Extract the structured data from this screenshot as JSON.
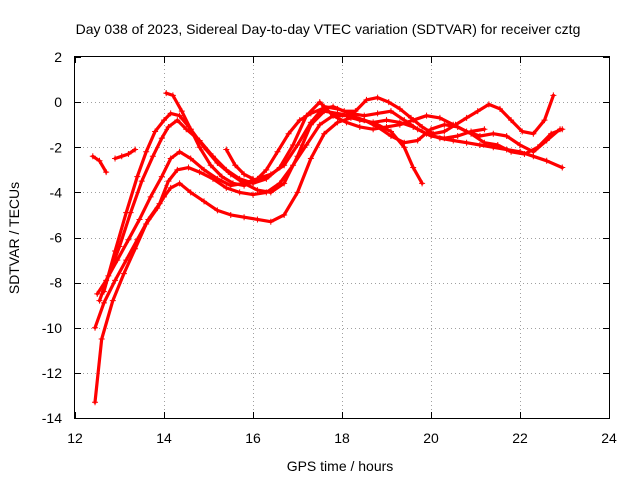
{
  "chart_data": {
    "type": "scatter",
    "title": "Day 038 of 2023, Sidereal Day-to-day VTEC variation (SDTVAR) for receiver cztg",
    "xlabel": "GPS time / hours",
    "ylabel": "SDTVAR / TECUs",
    "xlim": [
      12,
      24
    ],
    "ylim": [
      -14,
      2
    ],
    "xticks": [
      12,
      14,
      16,
      18,
      20,
      22,
      24
    ],
    "yticks": [
      2,
      0,
      -2,
      -4,
      -6,
      -8,
      -10,
      -12,
      -14
    ],
    "grid": true,
    "marker": "+",
    "color": "#ff0000",
    "series": [
      {
        "name": "trace-1",
        "x": [
          12.45,
          12.6,
          12.85,
          13.1,
          13.35,
          13.6,
          13.85,
          14.0,
          14.15,
          14.35,
          14.6,
          14.9,
          15.2,
          15.5,
          15.8,
          16.1,
          16.4,
          16.7,
          17.0,
          17.3,
          17.6,
          17.9,
          18.2,
          18.5,
          18.8,
          19.1,
          19.4,
          19.6,
          19.8
        ],
        "y": [
          -13.3,
          -10.5,
          -8.8,
          -7.6,
          -6.5,
          -5.4,
          -4.7,
          -4.2,
          -3.8,
          -3.6,
          -4.0,
          -4.4,
          -4.8,
          -5.0,
          -5.1,
          -5.2,
          -5.3,
          -5.0,
          -4.0,
          -2.5,
          -1.4,
          -0.9,
          -0.7,
          -0.8,
          -1.0,
          -1.3,
          -2.0,
          -2.9,
          -3.6
        ]
      },
      {
        "name": "trace-2",
        "x": [
          12.45,
          12.65,
          12.9,
          13.15,
          13.4,
          13.65,
          13.9,
          14.1,
          14.3,
          14.55,
          14.8,
          15.1,
          15.4,
          15.7,
          16.0,
          16.3,
          16.6,
          16.9,
          17.2,
          17.5,
          17.8,
          18.1,
          18.4,
          18.7,
          19.0,
          19.3,
          19.6,
          19.9,
          20.2,
          20.5,
          20.8,
          21.1,
          21.4,
          21.7,
          22.0,
          22.3,
          22.6,
          22.95
        ],
        "y": [
          -10.0,
          -8.9,
          -7.9,
          -7.0,
          -6.1,
          -5.2,
          -4.5,
          -3.5,
          -3.0,
          -2.9,
          -3.1,
          -3.4,
          -3.8,
          -4.0,
          -4.1,
          -4.0,
          -3.6,
          -2.8,
          -1.9,
          -1.0,
          -0.6,
          -0.6,
          -0.8,
          -0.9,
          -0.8,
          -0.9,
          -1.1,
          -1.4,
          -1.6,
          -1.7,
          -1.8,
          -1.9,
          -2.0,
          -2.1,
          -2.2,
          -2.4,
          -2.6,
          -2.9
        ]
      },
      {
        "name": "trace-3",
        "x": [
          12.5,
          12.7,
          12.95,
          13.2,
          13.45,
          13.7,
          13.95,
          14.15,
          14.35,
          14.6,
          14.9,
          15.2,
          15.5,
          15.8,
          16.1,
          16.4,
          16.7,
          17.0,
          17.3,
          17.6,
          17.9,
          18.2,
          18.5,
          18.8,
          19.1,
          19.4,
          19.7,
          20.0,
          20.3,
          20.6,
          20.9,
          21.2
        ],
        "y": [
          -8.5,
          -7.9,
          -7.0,
          -6.1,
          -5.2,
          -4.2,
          -3.3,
          -2.5,
          -2.2,
          -2.5,
          -3.0,
          -3.4,
          -3.7,
          -3.6,
          -3.4,
          -3.2,
          -2.8,
          -1.9,
          -0.9,
          -0.2,
          -0.3,
          -0.5,
          -0.6,
          -0.5,
          -0.4,
          -0.8,
          -1.2,
          -1.5,
          -1.6,
          -1.5,
          -1.3,
          -1.2
        ]
      },
      {
        "name": "trace-4",
        "x": [
          12.55,
          12.75,
          13.0,
          13.25,
          13.5,
          13.75,
          13.95,
          14.1,
          14.3,
          14.5,
          14.8,
          15.1,
          15.4,
          15.7,
          16.0,
          16.3,
          16.6,
          16.9,
          17.2,
          17.5,
          17.8,
          18.1,
          18.4,
          18.7,
          19.0,
          19.3,
          19.6,
          19.9,
          20.2,
          20.5,
          20.8,
          21.1,
          21.4,
          21.7,
          22.0,
          22.3,
          22.6,
          22.9
        ],
        "y": [
          -8.8,
          -7.7,
          -6.4,
          -4.9,
          -3.5,
          -2.4,
          -1.6,
          -1.1,
          -0.8,
          -1.2,
          -1.7,
          -2.4,
          -3.0,
          -3.4,
          -3.6,
          -3.4,
          -2.9,
          -1.9,
          -0.6,
          0.0,
          -0.6,
          -0.9,
          -1.1,
          -1.2,
          -1.1,
          -1.0,
          -0.8,
          -0.6,
          -0.7,
          -1.0,
          -1.3,
          -1.5,
          -1.4,
          -1.5,
          -1.9,
          -2.2,
          -1.7,
          -1.2
        ]
      },
      {
        "name": "trace-5",
        "x": [
          12.65,
          12.9,
          13.15,
          13.4,
          13.6,
          13.8,
          14.0,
          14.15,
          14.35,
          14.6,
          14.9,
          15.2,
          15.5,
          15.8,
          16.1,
          16.4,
          16.7,
          17.0,
          17.3,
          17.6,
          17.9,
          18.2,
          18.5,
          18.8,
          19.1,
          19.4,
          19.7,
          20.0,
          20.3,
          20.6,
          20.9,
          21.2,
          21.5,
          21.8,
          22.1,
          22.4,
          22.7,
          22.95
        ],
        "y": [
          -8.4,
          -6.6,
          -4.9,
          -3.3,
          -2.2,
          -1.3,
          -0.8,
          -0.5,
          -0.6,
          -1.2,
          -2.0,
          -2.7,
          -3.2,
          -3.6,
          -3.9,
          -4.0,
          -3.6,
          -2.4,
          -1.0,
          -0.4,
          -0.5,
          -0.6,
          -0.8,
          -1.1,
          -1.5,
          -1.8,
          -1.7,
          -1.2,
          -1.0,
          -1.1,
          -1.4,
          -1.8,
          -1.9,
          -2.2,
          -2.3,
          -2.0,
          -1.4,
          -1.2
        ]
      },
      {
        "name": "trace-6",
        "x": [
          14.05,
          14.2,
          14.4,
          14.6,
          14.8,
          15.05,
          15.3,
          15.55,
          15.8,
          16.05,
          16.3,
          16.55,
          16.8,
          17.05,
          17.3,
          17.55,
          17.8,
          18.05,
          18.3,
          18.55,
          18.8,
          19.05,
          19.3,
          19.55,
          19.8,
          20.05,
          20.3,
          20.55,
          20.8,
          21.05,
          21.3,
          21.55,
          21.8,
          22.05,
          22.3,
          22.55,
          22.75
        ],
        "y": [
          0.4,
          0.3,
          -0.4,
          -1.2,
          -2.0,
          -2.8,
          -3.3,
          -3.6,
          -3.7,
          -3.5,
          -3.0,
          -2.2,
          -1.4,
          -0.8,
          -0.5,
          -0.3,
          -0.2,
          -0.4,
          -0.4,
          0.1,
          0.2,
          0.0,
          -0.3,
          -0.7,
          -1.1,
          -1.4,
          -1.3,
          -1.0,
          -0.7,
          -0.4,
          -0.1,
          -0.3,
          -0.8,
          -1.3,
          -1.4,
          -0.8,
          0.3
        ]
      },
      {
        "name": "trace-7",
        "x": [
          12.4,
          12.55,
          12.7
        ],
        "y": [
          -2.4,
          -2.6,
          -3.1
        ]
      },
      {
        "name": "trace-8",
        "x": [
          12.9,
          13.05,
          13.2,
          13.35
        ],
        "y": [
          -2.5,
          -2.4,
          -2.3,
          -2.1
        ]
      },
      {
        "name": "trace-9",
        "x": [
          15.4,
          15.6,
          15.8,
          16.0
        ],
        "y": [
          -2.1,
          -2.8,
          -3.2,
          -3.4
        ]
      }
    ]
  }
}
